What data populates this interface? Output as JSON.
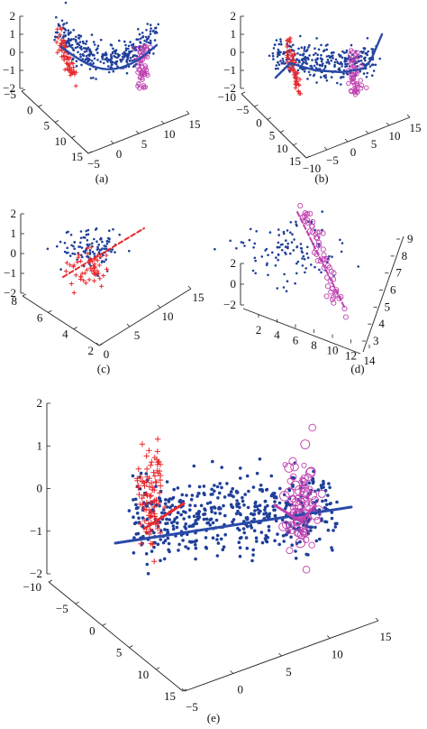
{
  "figure": {
    "panels": [
      {
        "id": "a",
        "caption": "(a)"
      },
      {
        "id": "b",
        "caption": "(b)"
      },
      {
        "id": "c",
        "caption": "(c)"
      },
      {
        "id": "d",
        "caption": "(d)"
      },
      {
        "id": "e",
        "caption": "(e)"
      }
    ]
  },
  "chart_data": [
    {
      "panel": "a",
      "type": "scatter",
      "title": "",
      "caption": "(a)",
      "z_ticks": [
        "2",
        "1",
        "0",
        "−1",
        "−2"
      ],
      "left_ticks": [
        "−5",
        "0",
        "5",
        "10",
        "15"
      ],
      "right_ticks": [
        "−5",
        "0",
        "5",
        "10",
        "15"
      ],
      "series": [
        {
          "kind": "points",
          "color": "#1f3f9a",
          "marker": "dot",
          "count": 330
        },
        {
          "kind": "points",
          "color": "#e8282d",
          "marker": "plus",
          "count": 60
        },
        {
          "kind": "points",
          "color": "#c040b0",
          "marker": "circle",
          "count": 55
        }
      ],
      "curves": [
        {
          "kind": "principal-curve",
          "color": "#2a4aa8",
          "shape": "U"
        }
      ],
      "colors": {
        "blue": "#1f3f9a",
        "red": "#e8282d",
        "magenta": "#c040b0"
      }
    },
    {
      "panel": "b",
      "type": "scatter",
      "title": "",
      "caption": "(b)",
      "z_ticks": [
        "2",
        "1",
        "0",
        "−1",
        "−2"
      ],
      "left_ticks": [
        "−10",
        "−5",
        "0",
        "5",
        "10",
        "15"
      ],
      "right_ticks": [
        "−10",
        "−5",
        "0",
        "5",
        "10",
        "15"
      ],
      "series": [
        {
          "kind": "points",
          "color": "#1f3f9a",
          "marker": "dot",
          "count": 330
        },
        {
          "kind": "points",
          "color": "#e8282d",
          "marker": "plus",
          "count": 60
        },
        {
          "kind": "points",
          "color": "#c040b0",
          "marker": "circle",
          "count": 55
        }
      ],
      "curves": [
        {
          "kind": "principal-curve",
          "color": "#2a4aa8",
          "shape": "U-extended"
        }
      ]
    },
    {
      "panel": "c",
      "type": "scatter",
      "title": "",
      "caption": "(c)",
      "z_ticks": [
        "2",
        "1",
        "0",
        "−1",
        "−2"
      ],
      "left_ticks": [
        "8",
        "6",
        "4",
        "2"
      ],
      "right_ticks": [
        "0",
        "5",
        "10",
        "15"
      ],
      "series": [
        {
          "kind": "points",
          "color": "#1f3f9a",
          "marker": "dot",
          "count": 110
        },
        {
          "kind": "points",
          "color": "#e8282d",
          "marker": "plus",
          "count": 55
        }
      ],
      "curves": [
        {
          "kind": "principal-line",
          "color": "#e8282d",
          "style": "dashed"
        }
      ]
    },
    {
      "panel": "d",
      "type": "scatter",
      "title": "",
      "caption": "(d)",
      "z_ticks": [
        "2",
        "0",
        "−2"
      ],
      "left_ticks": [
        "2",
        "4",
        "6",
        "8",
        "10",
        "12",
        "14"
      ],
      "right_ticks": [
        "9",
        "8",
        "7",
        "6",
        "5",
        "4",
        "3"
      ],
      "series": [
        {
          "kind": "points",
          "color": "#1f3f9a",
          "marker": "dot",
          "count": 110
        },
        {
          "kind": "points",
          "color": "#c040b0",
          "marker": "circle",
          "count": 55
        }
      ],
      "curves": [
        {
          "kind": "principal-line",
          "color": "#c040b0",
          "style": "dashed"
        }
      ]
    },
    {
      "panel": "e",
      "type": "scatter",
      "title": "",
      "caption": "(e)",
      "z_ticks": [
        "2",
        "1",
        "0",
        "−1",
        "−2"
      ],
      "left_ticks": [
        "−10",
        "−5",
        "0",
        "5",
        "10",
        "15"
      ],
      "right_ticks": [
        "−5",
        "0",
        "5",
        "10",
        "15"
      ],
      "series": [
        {
          "kind": "points",
          "color": "#1f3f9a",
          "marker": "dot",
          "count": 520
        },
        {
          "kind": "points",
          "color": "#e8282d",
          "marker": "plus",
          "count": 90
        },
        {
          "kind": "points",
          "color": "#c040b0",
          "marker": "circle",
          "count": 80
        }
      ],
      "curves": [
        {
          "kind": "principal-line",
          "color": "#2a4aa8"
        },
        {
          "kind": "local-line",
          "color": "#e8282d"
        },
        {
          "kind": "local-line",
          "color": "#c040b0"
        }
      ]
    }
  ]
}
